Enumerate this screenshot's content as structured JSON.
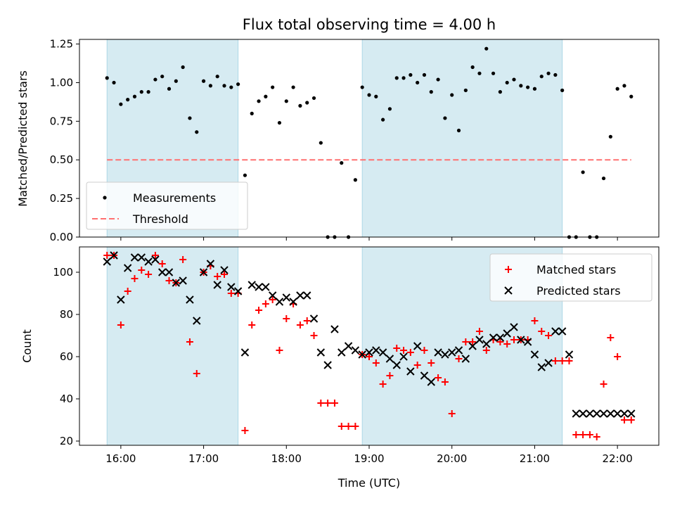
{
  "chart_data": [
    {
      "type": "scatter",
      "title": "Flux total observing time = 4.00 h",
      "xlabel": "",
      "ylabel": "Matched/Predicted stars",
      "xlim": [
        "15:30",
        "22:30"
      ],
      "ylim": [
        0,
        1.28
      ],
      "yticks": [
        0.0,
        0.25,
        0.5,
        0.75,
        1.0,
        1.25
      ],
      "yticklabels": [
        "0.00",
        "0.25",
        "0.50",
        "0.75",
        "1.00",
        "1.25"
      ],
      "legend_loc": "lower-left",
      "shaded_intervals": [
        [
          "15:50",
          "17:25"
        ],
        [
          "18:55",
          "21:20"
        ]
      ],
      "series": [
        {
          "name": "Measurements",
          "marker": "dot",
          "color": "#000000",
          "x": [
            "15:50",
            "15:55",
            "16:00",
            "16:05",
            "16:10",
            "16:15",
            "16:20",
            "16:25",
            "16:30",
            "16:35",
            "16:40",
            "16:45",
            "16:50",
            "16:55",
            "17:00",
            "17:05",
            "17:10",
            "17:15",
            "17:20",
            "17:25",
            "17:30",
            "17:35",
            "17:40",
            "17:45",
            "17:50",
            "17:55",
            "18:00",
            "18:05",
            "18:10",
            "18:15",
            "18:20",
            "18:25",
            "18:30",
            "18:35",
            "18:40",
            "18:45",
            "18:50",
            "18:55",
            "19:00",
            "19:05",
            "19:10",
            "19:15",
            "19:20",
            "19:25",
            "19:30",
            "19:35",
            "19:40",
            "19:45",
            "19:50",
            "19:55",
            "20:00",
            "20:05",
            "20:10",
            "20:15",
            "20:20",
            "20:25",
            "20:30",
            "20:35",
            "20:40",
            "20:45",
            "20:50",
            "20:55",
            "21:00",
            "21:05",
            "21:10",
            "21:15",
            "21:20",
            "21:25",
            "21:30",
            "21:35",
            "21:40",
            "21:45",
            "21:50",
            "21:55",
            "22:00",
            "22:05",
            "22:10"
          ],
          "y": [
            1.03,
            1.0,
            0.86,
            0.89,
            0.91,
            0.94,
            0.94,
            1.02,
            1.04,
            0.96,
            1.01,
            1.1,
            0.77,
            0.68,
            1.01,
            0.98,
            1.04,
            0.98,
            0.97,
            0.99,
            0.4,
            0.8,
            0.88,
            0.91,
            0.97,
            0.74,
            0.88,
            0.97,
            0.85,
            0.87,
            0.9,
            0.61,
            0.0,
            0.0,
            0.48,
            0.0,
            0.37,
            0.97,
            0.92,
            0.91,
            0.76,
            0.83,
            1.03,
            1.03,
            1.05,
            1.0,
            1.05,
            0.94,
            1.02,
            0.77,
            0.92,
            0.69,
            0.95,
            1.1,
            1.06,
            1.22,
            1.06,
            0.94,
            1.0,
            1.02,
            0.98,
            0.97,
            0.96,
            1.04,
            1.06,
            1.05,
            0.95,
            0.0,
            0.0,
            0.42,
            0.0,
            0.0,
            0.38,
            0.65,
            0.96,
            0.98,
            0.91
          ]
        },
        {
          "name": "Threshold",
          "style": "dashed",
          "color": "#ff7070",
          "x": [
            "15:50",
            "22:10"
          ],
          "y": [
            0.5,
            0.5
          ]
        }
      ]
    },
    {
      "type": "scatter",
      "title": "",
      "xlabel": "Time (UTC)",
      "ylabel": "Count",
      "xlim": [
        "15:30",
        "22:30"
      ],
      "ylim": [
        18,
        112
      ],
      "xticks": [
        "16:00",
        "17:00",
        "18:00",
        "19:00",
        "20:00",
        "21:00",
        "22:00"
      ],
      "yticks": [
        20,
        40,
        60,
        80,
        100
      ],
      "legend_loc": "upper-right",
      "shaded_intervals": [
        [
          "15:50",
          "17:25"
        ],
        [
          "18:55",
          "21:20"
        ]
      ],
      "series": [
        {
          "name": "Matched stars",
          "marker": "plus",
          "color": "#ff0000",
          "x": [
            "15:50",
            "15:55",
            "16:00",
            "16:05",
            "16:10",
            "16:15",
            "16:20",
            "16:25",
            "16:30",
            "16:35",
            "16:40",
            "16:45",
            "16:50",
            "16:55",
            "17:00",
            "17:05",
            "17:10",
            "17:15",
            "17:20",
            "17:25",
            "17:30",
            "17:35",
            "17:40",
            "17:45",
            "17:50",
            "17:55",
            "18:00",
            "18:05",
            "18:10",
            "18:15",
            "18:20",
            "18:25",
            "18:30",
            "18:35",
            "18:40",
            "18:45",
            "18:50",
            "18:55",
            "19:00",
            "19:05",
            "19:10",
            "19:15",
            "19:20",
            "19:25",
            "19:30",
            "19:35",
            "19:40",
            "19:45",
            "19:50",
            "19:55",
            "20:00",
            "20:05",
            "20:10",
            "20:15",
            "20:20",
            "20:25",
            "20:30",
            "20:35",
            "20:40",
            "20:45",
            "20:50",
            "20:55",
            "21:00",
            "21:05",
            "21:10",
            "21:15",
            "21:20",
            "21:25",
            "21:30",
            "21:35",
            "21:40",
            "21:45",
            "21:50",
            "21:55",
            "22:00",
            "22:05",
            "22:10"
          ],
          "y": [
            108,
            108,
            75,
            91,
            97,
            101,
            99,
            108,
            104,
            96,
            95,
            106,
            67,
            52,
            100,
            103,
            98,
            99,
            90,
            90,
            25,
            75,
            82,
            85,
            87,
            63,
            78,
            85,
            75,
            77,
            70,
            38,
            38,
            38,
            27,
            27,
            27,
            61,
            60,
            57,
            47,
            51,
            64,
            63,
            62,
            56,
            63,
            57,
            50,
            48,
            33,
            59,
            67,
            67,
            72,
            63,
            68,
            67,
            66,
            68,
            68,
            68,
            77,
            72,
            70,
            58,
            58,
            58,
            23,
            23,
            23,
            22,
            47,
            69,
            60,
            30,
            30
          ]
        },
        {
          "name": "Predicted stars",
          "marker": "x",
          "color": "#000000",
          "x": [
            "15:50",
            "15:55",
            "16:00",
            "16:05",
            "16:10",
            "16:15",
            "16:20",
            "16:25",
            "16:30",
            "16:35",
            "16:40",
            "16:45",
            "16:50",
            "16:55",
            "17:00",
            "17:05",
            "17:10",
            "17:15",
            "17:20",
            "17:25",
            "17:30",
            "17:35",
            "17:40",
            "17:45",
            "17:50",
            "17:55",
            "18:00",
            "18:05",
            "18:10",
            "18:15",
            "18:20",
            "18:25",
            "18:30",
            "18:35",
            "18:40",
            "18:45",
            "18:50",
            "18:55",
            "19:00",
            "19:05",
            "19:10",
            "19:15",
            "19:20",
            "19:25",
            "19:30",
            "19:35",
            "19:40",
            "19:45",
            "19:50",
            "19:55",
            "20:00",
            "20:05",
            "20:10",
            "20:15",
            "20:20",
            "20:25",
            "20:30",
            "20:35",
            "20:40",
            "20:45",
            "20:50",
            "20:55",
            "21:00",
            "21:05",
            "21:10",
            "21:15",
            "21:20",
            "21:25",
            "21:30",
            "21:35",
            "21:40",
            "21:45",
            "21:50",
            "21:55",
            "22:00",
            "22:05",
            "22:10"
          ],
          "y": [
            105,
            108,
            87,
            102,
            107,
            107,
            105,
            106,
            100,
            100,
            95,
            96,
            87,
            77,
            100,
            104,
            94,
            101,
            93,
            91,
            62,
            94,
            93,
            93,
            89,
            86,
            88,
            86,
            89,
            89,
            78,
            62,
            56,
            73,
            62,
            65,
            63,
            61,
            62,
            63,
            62,
            59,
            56,
            60,
            53,
            65,
            51,
            48,
            62,
            61,
            62,
            63,
            59,
            65,
            68,
            66,
            69,
            69,
            71,
            74,
            68,
            67,
            61,
            55,
            57,
            72,
            72,
            61,
            33,
            33,
            33,
            33,
            33,
            33,
            33,
            33,
            33
          ]
        }
      ]
    }
  ]
}
